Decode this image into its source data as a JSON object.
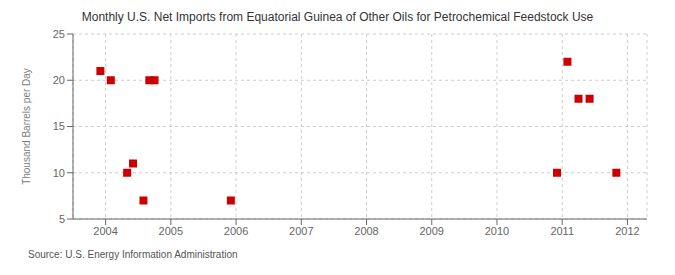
{
  "chart_data": {
    "type": "scatter",
    "title": "Monthly U.S. Net Imports from Equatorial Guinea of Other Oils for Petrochemical Feedstock Use",
    "y_label": "Thousand Barrels per Day",
    "annotations": [
      "Source: U.S. Energy Information Administration"
    ],
    "x": [
      2003.92,
      2004.08,
      2004.33,
      2004.42,
      2004.58,
      2004.67,
      2004.75,
      2005.92,
      2010.92,
      2011.08,
      2011.25,
      2011.42,
      2011.83
    ],
    "values": [
      21,
      20,
      10,
      11,
      7,
      20,
      20,
      7,
      10,
      22,
      18,
      18,
      10
    ],
    "color": "#cc0000",
    "marker": "square",
    "xlim": [
      2003.5,
      2012.3
    ],
    "xticks": [
      2004,
      2005,
      2006,
      2007,
      2008,
      2009,
      2010,
      2011,
      2012
    ],
    "ylim": [
      5,
      25
    ],
    "yticks": [
      5,
      10,
      15,
      20,
      25
    ],
    "grid": true
  }
}
